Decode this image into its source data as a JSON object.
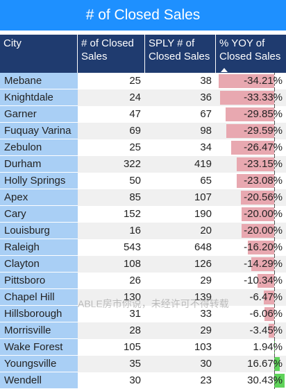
{
  "title": "# of Closed Sales",
  "headers": {
    "city": "City",
    "closed": "# of Closed Sales",
    "sply": "SPLY # of Closed Sales",
    "yoy": "% YOY of Closed Sales"
  },
  "rows": [
    {
      "city": "Mebane",
      "closed": "25",
      "sply": "38",
      "yoy": "-34.21%",
      "yoy_value": -34.21
    },
    {
      "city": "Knightdale",
      "closed": "24",
      "sply": "36",
      "yoy": "-33.33%",
      "yoy_value": -33.33
    },
    {
      "city": "Garner",
      "closed": "47",
      "sply": "67",
      "yoy": "-29.85%",
      "yoy_value": -29.85
    },
    {
      "city": "Fuquay Varina",
      "closed": "69",
      "sply": "98",
      "yoy": "-29.59%",
      "yoy_value": -29.59
    },
    {
      "city": "Zebulon",
      "closed": "25",
      "sply": "34",
      "yoy": "-26.47%",
      "yoy_value": -26.47
    },
    {
      "city": "Durham",
      "closed": "322",
      "sply": "419",
      "yoy": "-23.15%",
      "yoy_value": -23.15
    },
    {
      "city": "Holly Springs",
      "closed": "50",
      "sply": "65",
      "yoy": "-23.08%",
      "yoy_value": -23.08
    },
    {
      "city": "Apex",
      "closed": "85",
      "sply": "107",
      "yoy": "-20.56%",
      "yoy_value": -20.56
    },
    {
      "city": "Cary",
      "closed": "152",
      "sply": "190",
      "yoy": "-20.00%",
      "yoy_value": -20.0
    },
    {
      "city": "Louisburg",
      "closed": "16",
      "sply": "20",
      "yoy": "-20.00%",
      "yoy_value": -20.0
    },
    {
      "city": "Raleigh",
      "closed": "543",
      "sply": "648",
      "yoy": "-16.20%",
      "yoy_value": -16.2
    },
    {
      "city": "Clayton",
      "closed": "108",
      "sply": "126",
      "yoy": "-14.29%",
      "yoy_value": -14.29
    },
    {
      "city": "Pittsboro",
      "closed": "26",
      "sply": "29",
      "yoy": "-10.34%",
      "yoy_value": -10.34
    },
    {
      "city": "Chapel Hill",
      "closed": "130",
      "sply": "139",
      "yoy": "-6.47%",
      "yoy_value": -6.47
    },
    {
      "city": "Hillsborough",
      "closed": "31",
      "sply": "33",
      "yoy": "-6.06%",
      "yoy_value": -6.06
    },
    {
      "city": "Morrisville",
      "closed": "28",
      "sply": "29",
      "yoy": "-3.45%",
      "yoy_value": -3.45
    },
    {
      "city": "Wake Forest",
      "closed": "105",
      "sply": "103",
      "yoy": "1.94%",
      "yoy_value": 1.94
    },
    {
      "city": "Youngsville",
      "closed": "35",
      "sply": "30",
      "yoy": "16.67%",
      "yoy_value": 16.67
    },
    {
      "city": "Wendell",
      "closed": "30",
      "sply": "23",
      "yoy": "30.43%",
      "yoy_value": 30.43
    }
  ],
  "colors": {
    "title_bg": "#1e90ff",
    "header_bg": "#1f3b6f",
    "city_bg": "#a9cff5",
    "negative_bar": "#e8a8b0",
    "positive_bar": "#5fd35a"
  },
  "watermark": "ABLE房市你说，未经许可不得转载"
}
